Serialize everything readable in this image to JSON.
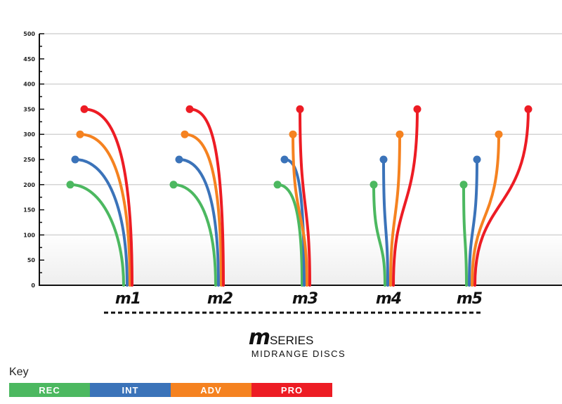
{
  "chart_data": {
    "type": "line",
    "title": "",
    "ylabel": "",
    "ylim": [
      0,
      500
    ],
    "yticks": [
      0,
      50,
      100,
      150,
      200,
      250,
      300,
      350,
      400,
      450,
      500
    ],
    "grid": true,
    "categories": [
      "m1",
      "m2",
      "m3",
      "m4",
      "m5"
    ],
    "series": [
      {
        "name": "REC",
        "color": "#4cb860",
        "values": [
          200,
          200,
          200,
          200,
          200
        ]
      },
      {
        "name": "INT",
        "color": "#3b73b9",
        "values": [
          250,
          250,
          250,
          250,
          250
        ]
      },
      {
        "name": "ADV",
        "color": "#f58220",
        "values": [
          300,
          300,
          300,
          300,
          300
        ]
      },
      {
        "name": "PRO",
        "color": "#ed1c24",
        "values": [
          350,
          350,
          350,
          350,
          350
        ]
      }
    ],
    "legend_placement": "bottom-left"
  },
  "logo": {
    "mark": "m",
    "word": "SERIES"
  },
  "subtitle": "MIDRANGE DISCS",
  "key": {
    "title": "Key",
    "items": [
      {
        "label": "REC",
        "color": "#4cb860"
      },
      {
        "label": "INT",
        "color": "#3b73b9"
      },
      {
        "label": "ADV",
        "color": "#f58220"
      },
      {
        "label": "PRO",
        "color": "#ed1c24"
      }
    ]
  }
}
